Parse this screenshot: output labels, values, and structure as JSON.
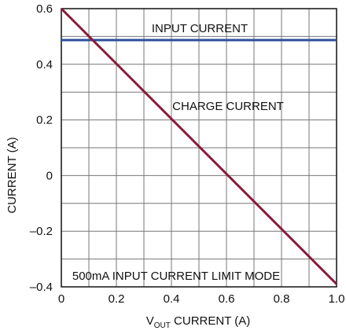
{
  "chart_data": {
    "type": "line",
    "xlabel": "V_OUT CURRENT (A)",
    "xlabel_parts": {
      "prefix": "V",
      "subscript": "OUT",
      "suffix": " CURRENT (A)"
    },
    "ylabel": "CURRENT (A)",
    "xlim": [
      0,
      1.0
    ],
    "ylim": [
      -0.4,
      0.6
    ],
    "x_ticks": [
      0,
      0.2,
      0.4,
      0.6,
      0.8,
      1.0
    ],
    "x_tick_labels": [
      "0",
      "0.2",
      "0.4",
      "0.6",
      "0.8",
      "1.0"
    ],
    "y_ticks": [
      0.6,
      0.4,
      0.2,
      0,
      -0.2,
      -0.4
    ],
    "y_tick_labels": [
      "0.6",
      "0.4",
      "0.2",
      "0",
      "–0.2",
      "–0.4"
    ],
    "grid": true,
    "grid_divisions": {
      "x": 10,
      "y": 10
    },
    "series": [
      {
        "name": "INPUT CURRENT",
        "color": "#2b4f9e",
        "x": [
          0,
          1.0
        ],
        "y": [
          0.487,
          0.487
        ]
      },
      {
        "name": "CHARGE CURRENT",
        "color": "#8b1a3a",
        "x": [
          0,
          1.0
        ],
        "y": [
          0.6,
          -0.39
        ]
      }
    ],
    "annotations": [
      "INPUT CURRENT",
      "CHARGE CURRENT",
      "500mA INPUT CURRENT LIMIT MODE"
    ]
  }
}
